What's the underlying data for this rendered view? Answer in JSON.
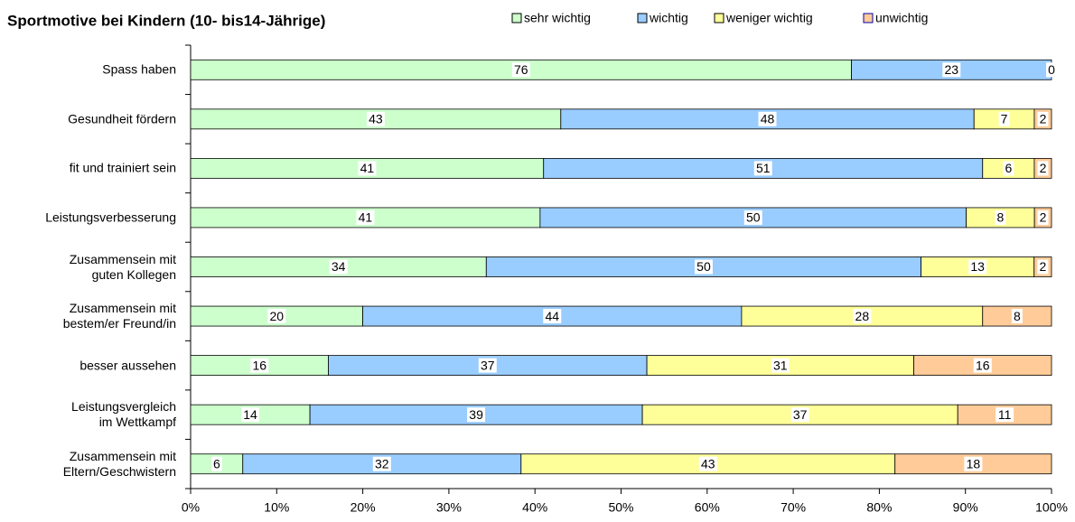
{
  "chart_data": {
    "type": "bar",
    "orientation": "horizontal",
    "stack": "percent",
    "title": "Sportmotive bei Kindern (10- bis14-Jährige)",
    "categories": [
      "Spass haben",
      "Gesundheit fördern",
      "fit und trainiert sein",
      "Leistungsverbesserung",
      "Zusammensein mit\nguten Kollegen",
      "Zusammensein mit\nbestem/er Freund/in",
      "besser aussehen",
      "Leistungsvergleich\nim Wettkampf",
      "Zusammensein mit\nEltern/Geschwistern"
    ],
    "series": [
      {
        "name": "sehr wichtig",
        "color": "#ccffcc",
        "values": [
          76,
          43,
          41,
          41,
          34,
          20,
          16,
          14,
          6
        ]
      },
      {
        "name": "wichtig",
        "color": "#99ccff",
        "values": [
          23,
          48,
          51,
          50,
          50,
          44,
          37,
          39,
          32
        ]
      },
      {
        "name": "weniger wichtig",
        "color": "#ffff99",
        "values": [
          0,
          7,
          6,
          8,
          13,
          28,
          31,
          37,
          43
        ]
      },
      {
        "name": "unwichtig",
        "color": "#ffcc99",
        "values": [
          0,
          2,
          2,
          2,
          2,
          8,
          16,
          11,
          18
        ]
      }
    ],
    "xlim": [
      0,
      100
    ],
    "xticks": [
      {
        "value": 0,
        "label": "0%"
      },
      {
        "value": 10,
        "label": "10%"
      },
      {
        "value": 20,
        "label": "20%"
      },
      {
        "value": 30,
        "label": "30%"
      },
      {
        "value": 40,
        "label": "40%"
      },
      {
        "value": 50,
        "label": "50%"
      },
      {
        "value": 60,
        "label": "60%"
      },
      {
        "value": 70,
        "label": "70%"
      },
      {
        "value": 80,
        "label": "80%"
      },
      {
        "value": 90,
        "label": "90%"
      },
      {
        "value": 100,
        "label": "100%"
      }
    ],
    "legend": "top"
  }
}
